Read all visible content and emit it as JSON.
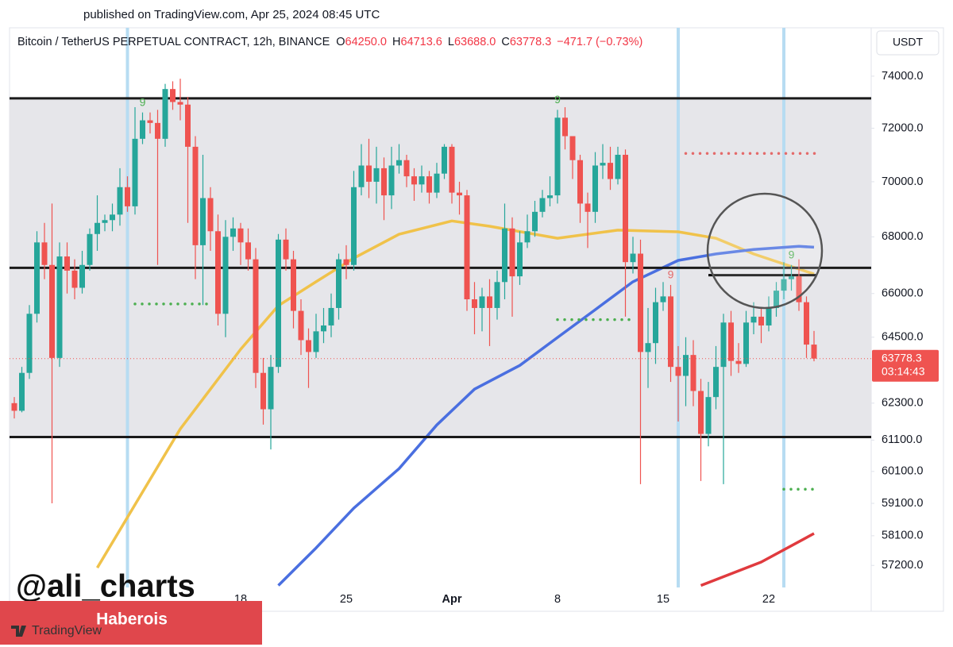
{
  "header": {
    "published": "published on TradingView.com, Apr 25, 2024 08:45 UTC",
    "currency": "USDT",
    "watermark": "@ali_charts",
    "banner": "Haberois",
    "logo": "TradingView"
  },
  "chart_data": {
    "type": "candlestick",
    "legend": {
      "symbol": "Bitcoin / TetherUS PERPETUAL CONTRACT, 12h, BINANCE",
      "fields": [
        {
          "key": "O",
          "value": "64250.0"
        },
        {
          "key": "H",
          "value": "64713.6"
        },
        {
          "key": "L",
          "value": "63688.0"
        },
        {
          "key": "C",
          "value": "63778.3"
        }
      ],
      "change": "−471.7 (−0.73%)"
    },
    "categories": [
      null,
      null,
      null,
      null,
      null,
      null,
      null,
      null,
      null,
      null,
      null,
      null,
      null,
      null,
      null,
      null,
      null,
      null,
      null,
      null,
      null,
      null,
      null,
      null,
      null,
      null,
      null,
      null,
      null,
      null,
      "18",
      null,
      null,
      null,
      null,
      null,
      null,
      null,
      null,
      null,
      null,
      null,
      null,
      null,
      "25",
      null,
      null,
      null,
      null,
      null,
      null,
      null,
      null,
      null,
      null,
      null,
      null,
      null,
      "Apr",
      null,
      null,
      null,
      null,
      null,
      null,
      null,
      null,
      null,
      null,
      null,
      null,
      null,
      "8",
      null,
      null,
      null,
      null,
      null,
      null,
      null,
      null,
      null,
      null,
      null,
      null,
      null,
      "15",
      null,
      null,
      null,
      null,
      null,
      null,
      null,
      null,
      null,
      null,
      null,
      null,
      null,
      "22",
      null,
      null,
      null,
      null,
      null,
      null
    ],
    "open": [
      62300,
      62050,
      63300,
      65300,
      67800,
      67000,
      63800,
      67300,
      66800,
      66200,
      67000,
      68100,
      68500,
      68600,
      68800,
      69800,
      69100,
      71600,
      72300,
      72200,
      71600,
      73500,
      73000,
      72900,
      71300,
      67700,
      69400,
      68200,
      65300,
      68000,
      68300,
      67800,
      67200,
      63300,
      62100,
      63500,
      67900,
      67200,
      65400,
      64400,
      64000,
      64700,
      64900,
      65500,
      67200,
      67000,
      69800,
      70600,
      70000,
      70500,
      69500,
      70600,
      70800,
      70200,
      69900,
      70200,
      69600,
      70300,
      71300,
      69600,
      69500,
      65800,
      65500,
      65900,
      65500,
      66400,
      68300,
      66600,
      67800,
      68200,
      68900,
      69400,
      69500,
      72400,
      71700,
      70800,
      69200,
      68900,
      70600,
      70700,
      70100,
      71000,
      67100,
      67400,
      64000,
      64300,
      65700,
      65900,
      63500,
      63200,
      63900,
      62700,
      61300,
      62500,
      63500,
      65000,
      63700,
      63600,
      65000,
      65200,
      64900,
      65500,
      66100,
      66500,
      66600,
      65700,
      64250
    ],
    "high": [
      62500,
      63500,
      65600,
      68200,
      68500,
      69200,
      67800,
      67800,
      67200,
      67500,
      68300,
      69500,
      68800,
      69200,
      70500,
      70200,
      72800,
      72600,
      72600,
      72700,
      73700,
      73800,
      73900,
      73200,
      71700,
      71000,
      69800,
      68800,
      68600,
      68700,
      68500,
      68300,
      67600,
      63800,
      63900,
      68100,
      68300,
      67500,
      65800,
      64800,
      65300,
      65500,
      66000,
      67400,
      67700,
      70400,
      71400,
      71600,
      71300,
      70900,
      71300,
      71400,
      71000,
      70500,
      70600,
      70400,
      70700,
      71400,
      71400,
      70000,
      69700,
      66400,
      66200,
      66500,
      66800,
      69200,
      68700,
      68200,
      68800,
      69300,
      69700,
      70200,
      72700,
      72800,
      71700,
      71000,
      69600,
      71100,
      71400,
      71300,
      71300,
      71200,
      68000,
      67900,
      65500,
      66200,
      66400,
      66300,
      64200,
      64500,
      64400,
      63100,
      63000,
      64200,
      65300,
      65400,
      64300,
      65400,
      65700,
      65500,
      65900,
      66400,
      67100,
      67000,
      67200,
      65900,
      64713.6
    ],
    "low": [
      61800,
      62000,
      63100,
      65000,
      66500,
      59100,
      63500,
      66000,
      65800,
      66000,
      66800,
      67500,
      68200,
      68200,
      68400,
      68900,
      68800,
      71400,
      71800,
      67000,
      71300,
      72700,
      72300,
      68500,
      66500,
      65600,
      67500,
      64900,
      64500,
      67500,
      67000,
      66800,
      62800,
      61600,
      60800,
      63300,
      66800,
      64800,
      63900,
      62800,
      63800,
      64300,
      64500,
      65100,
      66500,
      66800,
      69500,
      69400,
      69200,
      68600,
      69000,
      70300,
      69800,
      69300,
      69600,
      69200,
      69400,
      70100,
      69200,
      68800,
      65400,
      64600,
      64700,
      64200,
      65100,
      65800,
      65200,
      66300,
      67600,
      68000,
      68700,
      69100,
      69200,
      71200,
      70100,
      68500,
      67600,
      68500,
      70100,
      69700,
      69900,
      65200,
      66700,
      59700,
      62800,
      63600,
      65400,
      63000,
      61700,
      62200,
      62200,
      59800,
      60900,
      62100,
      59700,
      63200,
      63300,
      63500,
      64600,
      64300,
      64700,
      65200,
      65800,
      66100,
      65400,
      63800,
      63688.0
    ],
    "close": [
      62050,
      63300,
      65300,
      67800,
      67000,
      63800,
      67300,
      66800,
      66200,
      67000,
      68100,
      68500,
      68600,
      68800,
      69800,
      69100,
      71600,
      72300,
      72200,
      71600,
      73500,
      73000,
      72900,
      71300,
      67700,
      69400,
      68200,
      65300,
      68000,
      68300,
      67800,
      67200,
      63300,
      62100,
      63500,
      67900,
      67200,
      65400,
      64400,
      64000,
      64700,
      64900,
      65500,
      67200,
      67000,
      69800,
      70600,
      70000,
      70500,
      69500,
      70600,
      70800,
      70200,
      69900,
      70200,
      69600,
      70300,
      71300,
      69600,
      69500,
      65800,
      65500,
      65900,
      65500,
      66400,
      68300,
      66600,
      67800,
      68200,
      68900,
      69400,
      69500,
      72400,
      71700,
      70800,
      69200,
      68900,
      70600,
      70700,
      70100,
      71000,
      67100,
      67400,
      64000,
      64300,
      65700,
      65900,
      63500,
      63200,
      63900,
      62700,
      61300,
      62500,
      63500,
      65000,
      63700,
      63600,
      65000,
      65200,
      64900,
      65500,
      66100,
      66500,
      66600,
      65700,
      64250,
      63778.3
    ],
    "up_color": "#26a69a",
    "down_color": "#ef5350",
    "lines": [
      {
        "color": "#f0c24a",
        "x": [
          11,
          22,
          30,
          35,
          40,
          45,
          51,
          58,
          63,
          72,
          80,
          88,
          93,
          98,
          106
        ],
        "values": [
          57130,
          61460,
          64090,
          65580,
          66410,
          67240,
          68090,
          68570,
          68380,
          67950,
          68240,
          68180,
          67950,
          67390,
          66680
        ]
      },
      {
        "color": "#4a6fe0",
        "x": [
          35,
          40,
          45,
          51,
          56,
          61,
          67,
          72,
          77,
          82,
          88,
          93,
          98,
          104,
          106
        ],
        "values": [
          56600,
          57730,
          58950,
          60190,
          61590,
          62760,
          63550,
          64490,
          65440,
          66410,
          67160,
          67390,
          67550,
          67660,
          67630
        ]
      },
      {
        "color": "#e03a3e",
        "x": [
          91,
          99,
          106
        ],
        "values": [
          56600,
          57300,
          58170
        ]
      }
    ],
    "range": {
      "from": 61200,
      "to": 73140,
      "color": "#e6e6ea"
    },
    "hlines": [
      {
        "value": 73140,
        "color": "#1a1a1a",
        "style": "solid"
      },
      {
        "value": 66900,
        "color": "#1a1a1a",
        "style": "solid"
      },
      {
        "value": 61200,
        "color": "#1a1a1a",
        "style": "solid"
      },
      {
        "value": 66640,
        "color": "#000000",
        "style": "solid",
        "from": 92,
        "to": 106
      },
      {
        "value": 71050,
        "color": "#e46a6a",
        "style": "dotted",
        "from": 89,
        "to": 106
      },
      {
        "value": 65640,
        "color": "#4caf50",
        "style": "dotted",
        "from": 16,
        "to": 26
      },
      {
        "value": 65100,
        "color": "#4caf50",
        "style": "dotted",
        "from": 72,
        "to": 82
      },
      {
        "value": 59540,
        "color": "#4caf50",
        "style": "dotted",
        "from": 102,
        "to": 106
      }
    ],
    "highlight_candles": [
      15,
      88,
      102
    ],
    "annotations": [
      {
        "text": "9",
        "candle": 17,
        "color": "#4caf50"
      },
      {
        "text": "9",
        "candle": 72,
        "color": "#4caf50"
      },
      {
        "text": "9",
        "candle": 87,
        "color": "#e46a6a"
      },
      {
        "text": "9",
        "candle": 103,
        "color": "#4caf50"
      }
    ],
    "price_label": "63778.3",
    "countdown": "03:14:43",
    "log_scale": true,
    "grid": false,
    "ylim": [
      56540,
      74650
    ],
    "yticks": [
      {
        "value": 74000,
        "label": "74000.0"
      },
      {
        "value": 72000,
        "label": "72000.0"
      },
      {
        "value": 70000,
        "label": "70000.0"
      },
      {
        "value": 68000,
        "label": "68000.0"
      },
      {
        "value": 66000,
        "label": "66000.0"
      },
      {
        "value": 64500,
        "label": "64500.0"
      },
      {
        "value": 62300,
        "label": "62300.0"
      },
      {
        "value": 61100,
        "label": "61100.0"
      },
      {
        "value": 60100,
        "label": "60100.0"
      },
      {
        "value": 59100,
        "label": "59100.0"
      },
      {
        "value": 58100,
        "label": "58100.0"
      },
      {
        "value": 57200,
        "label": "57200.0"
      }
    ]
  }
}
